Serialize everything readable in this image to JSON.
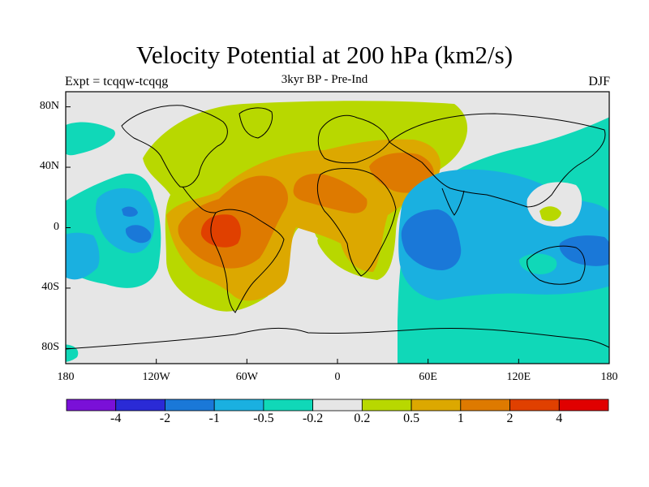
{
  "title": "Velocity Potential at 200 hPa (km2/s)",
  "subtitle": "3kyr BP - Pre-Ind",
  "experiment": "Expt = tcqqw-tcqqg",
  "season": "DJF",
  "map": {
    "lat_labels": [
      {
        "lat": 80,
        "text": "80N"
      },
      {
        "lat": 40,
        "text": "40N"
      },
      {
        "lat": 0,
        "text": "0"
      },
      {
        "lat": -40,
        "text": "40S"
      },
      {
        "lat": -80,
        "text": "80S"
      }
    ],
    "lon_labels": [
      {
        "lon": 0,
        "text": "180"
      },
      {
        "lon": 60,
        "text": "120W"
      },
      {
        "lon": 120,
        "text": "60W"
      },
      {
        "lon": 180,
        "text": "0"
      },
      {
        "lon": 240,
        "text": "60E"
      },
      {
        "lon": 300,
        "text": "120E"
      },
      {
        "lon": 360,
        "text": "180"
      }
    ]
  },
  "colorbar": {
    "colors": [
      "#7a10d8",
      "#2a2ad6",
      "#1a78d8",
      "#1ab0e0",
      "#10d8b8",
      "#e6e6e6",
      "#b8d800",
      "#dca800",
      "#de7a00",
      "#e04000",
      "#e00000"
    ],
    "labels": [
      "-4",
      "-2",
      "-1",
      "-0.5",
      "-0.2",
      "0.2",
      "0.5",
      "1",
      "2",
      "4"
    ]
  },
  "colors": {
    "positive_fill": "#b8d800",
    "positive_mid": "#dca800",
    "positive_strong": "#de7a00",
    "positive_max": "#e04000",
    "negative_fill": "#10d8b8",
    "negative_mid": "#1ab0e0",
    "negative_strong": "#1a78d8",
    "neutral": "#e6e6e6",
    "coastline": "#000000"
  }
}
